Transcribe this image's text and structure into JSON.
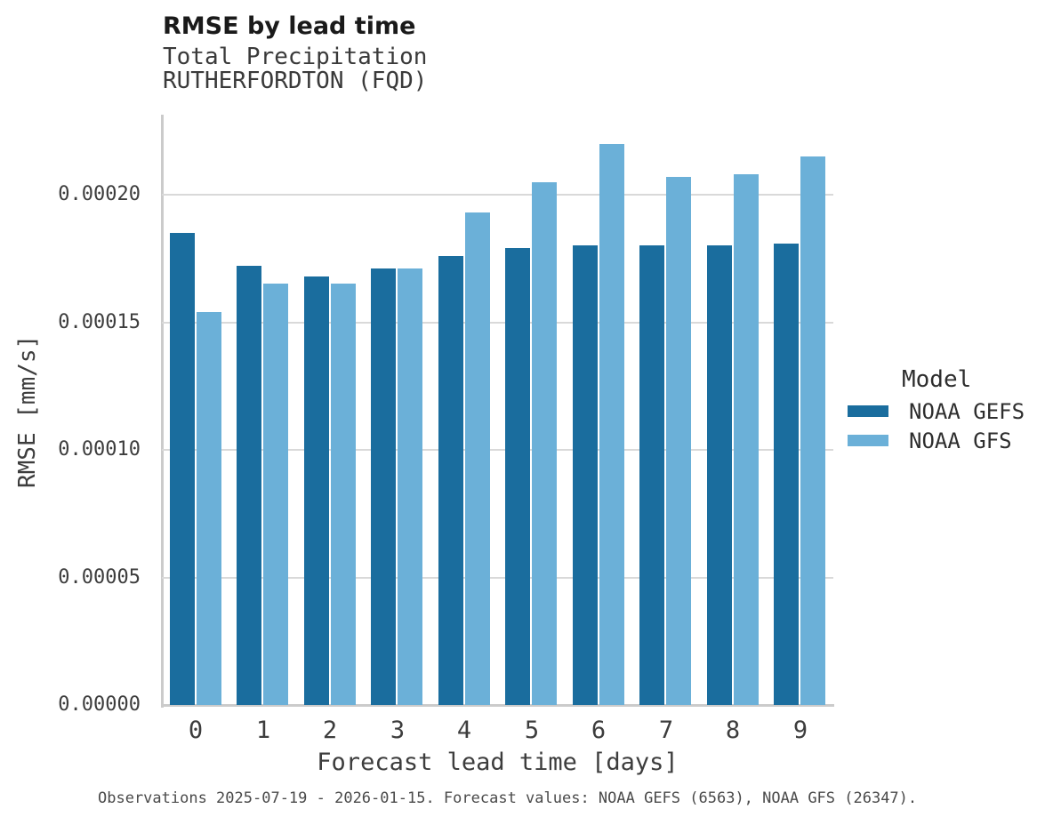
{
  "chart_data": {
    "type": "bar",
    "title": "RMSE by lead time",
    "subtitle_variable": "Total Precipitation",
    "subtitle_station": "RUTHERFORDTON (FQD)",
    "xlabel": "Forecast lead time [days]",
    "ylabel": "RMSE [mm/s]",
    "categories": [
      "0",
      "1",
      "2",
      "3",
      "4",
      "5",
      "6",
      "7",
      "8",
      "9"
    ],
    "series": [
      {
        "name": "NOAA GEFS",
        "color": "#1a6d9e",
        "values": [
          0.000185,
          0.000172,
          0.000168,
          0.000171,
          0.000176,
          0.000179,
          0.00018,
          0.00018,
          0.00018,
          0.000181
        ]
      },
      {
        "name": "NOAA GFS",
        "color": "#6bb0d8",
        "values": [
          0.000154,
          0.000165,
          0.000165,
          0.000171,
          0.000193,
          0.000205,
          0.00022,
          0.000207,
          0.000208,
          0.000215
        ]
      }
    ],
    "y_ticks": [
      {
        "label": "0.00000",
        "value": 0.0
      },
      {
        "label": "0.00005",
        "value": 5e-05
      },
      {
        "label": "0.00010",
        "value": 0.0001
      },
      {
        "label": "0.00015",
        "value": 0.00015
      },
      {
        "label": "0.00020",
        "value": 0.0002
      }
    ],
    "ylim": [
      0,
      0.00023
    ],
    "grid": "horizontal",
    "legend_position": "right",
    "legend_title": "Model",
    "caption": "Observations 2025-07-19 - 2026-01-15. Forecast values: NOAA GEFS (6563), NOAA GFS (26347)."
  },
  "colors": {
    "background": "#ffffff",
    "gridline": "#d9d9d9",
    "spine": "#cbcbcb",
    "title_text": "#1a1a1a",
    "axis_text": "#3d3d3d",
    "caption_text": "#4a4a4a"
  }
}
